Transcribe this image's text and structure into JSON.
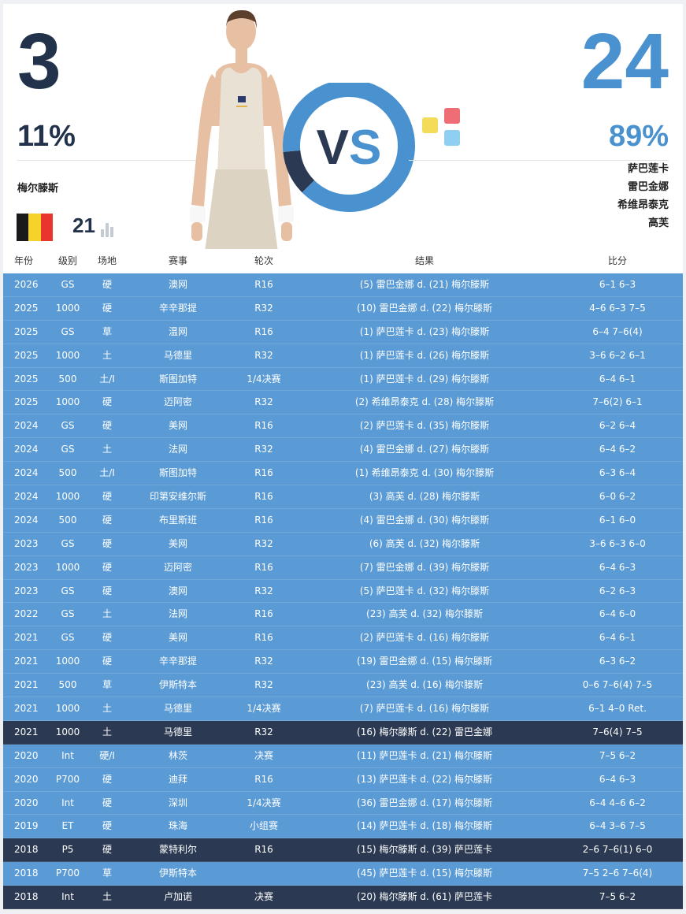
{
  "left_player": {
    "name": "梅尔滕斯",
    "wins": "3",
    "win_pct": "11%",
    "rank": "21",
    "flag_colors": [
      "#1a1a1a",
      "#f5d32a",
      "#e8352e"
    ]
  },
  "right_player": {
    "names": [
      "萨巴莲卡",
      "雷巴金娜",
      "希维昂泰克",
      "高芙"
    ],
    "wins": "24",
    "win_pct": "89%",
    "logo_colors": [
      "#f4dc5a",
      "#ef6e75",
      "#8fd0f2"
    ]
  },
  "vs_label": "VS",
  "donut": {
    "left_share": 0.11,
    "right_share": 0.89,
    "left_color": "#2b3a52",
    "right_color": "#4a92cf"
  },
  "colors": {
    "row_blue": "#5a9bd5",
    "row_dark": "#2b3a52",
    "accent_blue": "#4a92cf",
    "navy": "#22324a"
  },
  "table": {
    "headers": [
      "年份",
      "级别",
      "场地",
      "赛事",
      "轮次",
      "结果",
      "比分"
    ],
    "rows": [
      {
        "year": "2026",
        "level": "GS",
        "surface": "硬",
        "event": "澳网",
        "round": "R16",
        "result": "(5) 雷巴金娜 d. (21) 梅尔滕斯",
        "score": "6–1 6–3",
        "highlight": false
      },
      {
        "year": "2025",
        "level": "1000",
        "surface": "硬",
        "event": "辛辛那提",
        "round": "R32",
        "result": "(10) 雷巴金娜 d. (22) 梅尔滕斯",
        "score": "4–6 6–3 7–5",
        "highlight": false
      },
      {
        "year": "2025",
        "level": "GS",
        "surface": "草",
        "event": "温网",
        "round": "R16",
        "result": "(1) 萨巴莲卡 d. (23) 梅尔滕斯",
        "score": "6–4 7–6(4)",
        "highlight": false
      },
      {
        "year": "2025",
        "level": "1000",
        "surface": "土",
        "event": "马德里",
        "round": "R32",
        "result": "(1) 萨巴莲卡 d. (26) 梅尔滕斯",
        "score": "3–6 6–2 6–1",
        "highlight": false
      },
      {
        "year": "2025",
        "level": "500",
        "surface": "土/I",
        "event": "斯图加特",
        "round": "1/4决赛",
        "result": "(1) 萨巴莲卡 d. (29) 梅尔滕斯",
        "score": "6–4 6–1",
        "highlight": false
      },
      {
        "year": "2025",
        "level": "1000",
        "surface": "硬",
        "event": "迈阿密",
        "round": "R32",
        "result": "(2) 希维昂泰克 d. (28) 梅尔滕斯",
        "score": "7–6(2) 6–1",
        "highlight": false
      },
      {
        "year": "2024",
        "level": "GS",
        "surface": "硬",
        "event": "美网",
        "round": "R16",
        "result": "(2) 萨巴莲卡 d. (35) 梅尔滕斯",
        "score": "6–2 6–4",
        "highlight": false
      },
      {
        "year": "2024",
        "level": "GS",
        "surface": "土",
        "event": "法网",
        "round": "R32",
        "result": "(4) 雷巴金娜 d. (27) 梅尔滕斯",
        "score": "6–4 6–2",
        "highlight": false
      },
      {
        "year": "2024",
        "level": "500",
        "surface": "土/I",
        "event": "斯图加特",
        "round": "R16",
        "result": "(1) 希维昂泰克 d. (30) 梅尔滕斯",
        "score": "6–3 6–4",
        "highlight": false
      },
      {
        "year": "2024",
        "level": "1000",
        "surface": "硬",
        "event": "印第安维尔斯",
        "round": "R16",
        "result": "(3) 高芙 d. (28) 梅尔滕斯",
        "score": "6–0 6–2",
        "highlight": false
      },
      {
        "year": "2024",
        "level": "500",
        "surface": "硬",
        "event": "布里斯班",
        "round": "R16",
        "result": "(4) 雷巴金娜 d. (30) 梅尔滕斯",
        "score": "6–1 6–0",
        "highlight": false
      },
      {
        "year": "2023",
        "level": "GS",
        "surface": "硬",
        "event": "美网",
        "round": "R32",
        "result": "(6) 高芙 d. (32) 梅尔滕斯",
        "score": "3–6 6–3 6–0",
        "highlight": false
      },
      {
        "year": "2023",
        "level": "1000",
        "surface": "硬",
        "event": "迈阿密",
        "round": "R16",
        "result": "(7) 雷巴金娜 d. (39) 梅尔滕斯",
        "score": "6–4 6–3",
        "highlight": false
      },
      {
        "year": "2023",
        "level": "GS",
        "surface": "硬",
        "event": "澳网",
        "round": "R32",
        "result": "(5) 萨巴莲卡 d. (32) 梅尔滕斯",
        "score": "6–2 6–3",
        "highlight": false
      },
      {
        "year": "2022",
        "level": "GS",
        "surface": "土",
        "event": "法网",
        "round": "R16",
        "result": "(23) 高芙 d. (32) 梅尔滕斯",
        "score": "6–4 6–0",
        "highlight": false
      },
      {
        "year": "2021",
        "level": "GS",
        "surface": "硬",
        "event": "美网",
        "round": "R16",
        "result": "(2) 萨巴莲卡 d. (16) 梅尔滕斯",
        "score": "6–4 6–1",
        "highlight": false
      },
      {
        "year": "2021",
        "level": "1000",
        "surface": "硬",
        "event": "辛辛那提",
        "round": "R32",
        "result": "(19) 雷巴金娜 d. (15) 梅尔滕斯",
        "score": "6–3 6–2",
        "highlight": false
      },
      {
        "year": "2021",
        "level": "500",
        "surface": "草",
        "event": "伊斯特本",
        "round": "R32",
        "result": "(23) 高芙 d. (16) 梅尔滕斯",
        "score": "0–6 7–6(4) 7–5",
        "highlight": false
      },
      {
        "year": "2021",
        "level": "1000",
        "surface": "土",
        "event": "马德里",
        "round": "1/4决赛",
        "result": "(7) 萨巴莲卡 d. (16) 梅尔滕斯",
        "score": "6–1 4–0 Ret.",
        "highlight": false
      },
      {
        "year": "2021",
        "level": "1000",
        "surface": "土",
        "event": "马德里",
        "round": "R32",
        "result": "(16) 梅尔滕斯 d. (22) 雷巴金娜",
        "score": "7–6(4) 7–5",
        "highlight": true
      },
      {
        "year": "2020",
        "level": "Int",
        "surface": "硬/I",
        "event": "林茨",
        "round": "决赛",
        "result": "(11) 萨巴莲卡 d. (21) 梅尔滕斯",
        "score": "7–5 6–2",
        "highlight": false
      },
      {
        "year": "2020",
        "level": "P700",
        "surface": "硬",
        "event": "迪拜",
        "round": "R16",
        "result": "(13) 萨巴莲卡 d. (22) 梅尔滕斯",
        "score": "6–4 6–3",
        "highlight": false
      },
      {
        "year": "2020",
        "level": "Int",
        "surface": "硬",
        "event": "深圳",
        "round": "1/4决赛",
        "result": "(36) 雷巴金娜 d. (17) 梅尔滕斯",
        "score": "6–4 4–6 6–2",
        "highlight": false
      },
      {
        "year": "2019",
        "level": "ET",
        "surface": "硬",
        "event": "珠海",
        "round": "小组赛",
        "result": "(14) 萨巴莲卡 d. (18) 梅尔滕斯",
        "score": "6–4 3–6 7–5",
        "highlight": false
      },
      {
        "year": "2018",
        "level": "P5",
        "surface": "硬",
        "event": "蒙特利尔",
        "round": "R16",
        "result": "(15) 梅尔滕斯 d. (39) 萨巴莲卡",
        "score": "2–6 7–6(1) 6–0",
        "highlight": true
      },
      {
        "year": "2018",
        "level": "P700",
        "surface": "草",
        "event": "伊斯特本",
        "round": "",
        "result": "(45) 萨巴莲卡 d. (15) 梅尔滕斯",
        "score": "7–5 2–6 7–6(4)",
        "highlight": false
      },
      {
        "year": "2018",
        "level": "Int",
        "surface": "土",
        "event": "卢加诺",
        "round": "决赛",
        "result": "(20) 梅尔滕斯 d. (61) 萨巴莲卡",
        "score": "7–5 6–2",
        "highlight": true
      }
    ]
  }
}
